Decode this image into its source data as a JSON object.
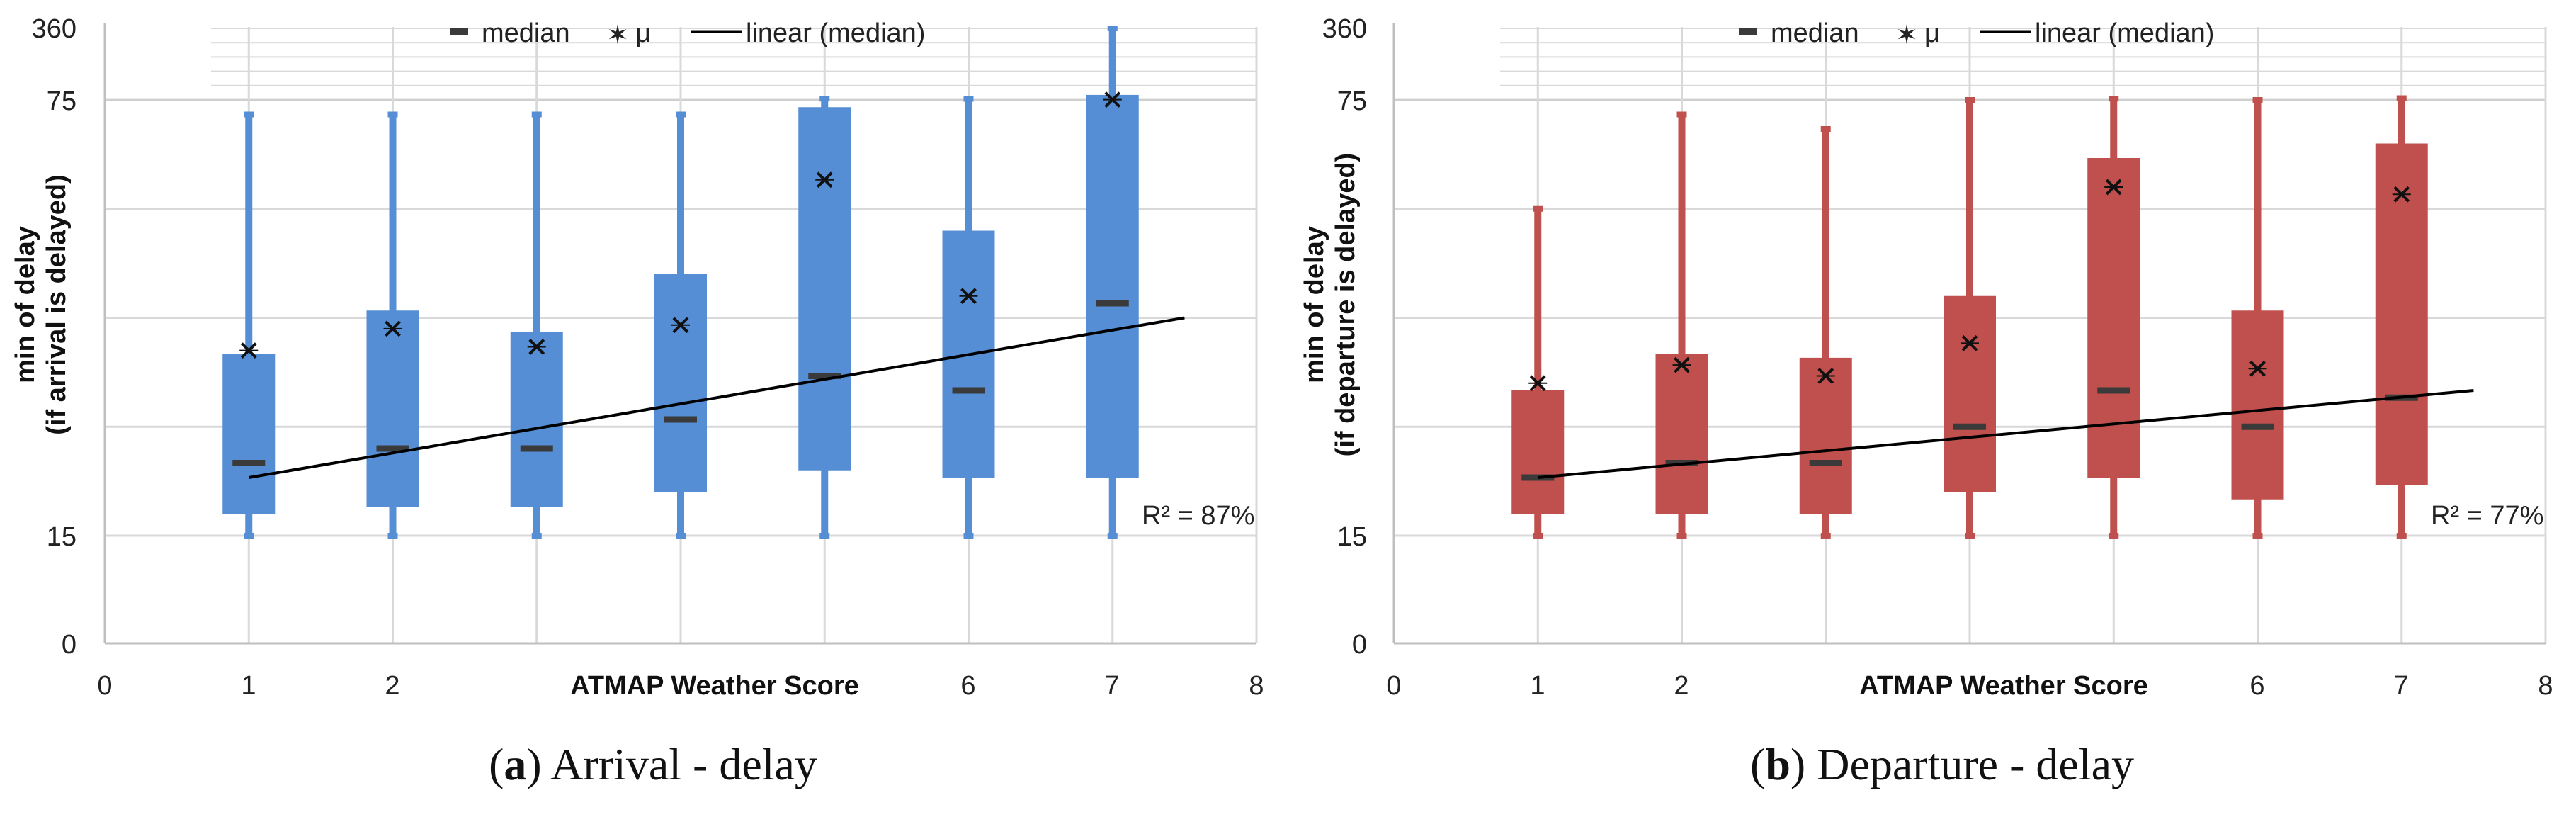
{
  "chart_data": [
    {
      "type": "box",
      "caption_letter": "a",
      "caption_text": "Arrival - delay",
      "color": "#558ED5",
      "xlabel": "ATMAP Weather Score",
      "ylabel_line1": "min of delay",
      "ylabel_line2": "(if arrival is delayed)",
      "xlim": [
        0,
        8
      ],
      "x_ticks": [
        "0",
        "1",
        "2",
        "",
        "",
        "6",
        "7",
        "8"
      ],
      "y_ticks": [
        "0",
        "15",
        "75",
        "360"
      ],
      "y_axis_note": "piecewise scale: 0-15, 15-75 (main), 75-360",
      "legend": [
        "median",
        "μ",
        "linear (median)"
      ],
      "r2_label": "R² = 87%",
      "boxes": [
        {
          "score": 1,
          "whisker_low": 15,
          "q1": 18,
          "median": 25,
          "q3": 40,
          "whisker_high": 73,
          "mean": 40.5
        },
        {
          "score": 2,
          "whisker_low": 15,
          "q1": 19,
          "median": 27,
          "q3": 46,
          "whisker_high": 73,
          "mean": 43.5
        },
        {
          "score": 3,
          "whisker_low": 15,
          "q1": 19,
          "median": 27,
          "q3": 43,
          "whisker_high": 73,
          "mean": 41
        },
        {
          "score": 4,
          "whisker_low": 15,
          "q1": 21,
          "median": 31,
          "q3": 51,
          "whisker_high": 73,
          "mean": 44
        },
        {
          "score": 5,
          "whisker_low": 15,
          "q1": 24,
          "median": 37,
          "q3": 74,
          "whisker_high": 80,
          "mean": 64
        },
        {
          "score": 6,
          "whisker_low": 15,
          "q1": 23,
          "median": 35,
          "q3": 57,
          "whisker_high": 79,
          "mean": 48
        },
        {
          "score": 7,
          "whisker_low": 15,
          "q1": 23,
          "median": 47,
          "q3": 95,
          "whisker_high": 360,
          "mean": 76
        }
      ],
      "trend": {
        "x0": 1,
        "y0": 23,
        "x1": 7.5,
        "y1": 45
      }
    },
    {
      "type": "box",
      "caption_letter": "b",
      "caption_text": "Departure - delay",
      "color": "#C0504D",
      "xlabel": "ATMAP Weather Score",
      "ylabel_line1": "min of delay",
      "ylabel_line2": "(if departure is delayed)",
      "xlim": [
        0,
        8
      ],
      "x_ticks": [
        "0",
        "1",
        "2",
        "",
        "",
        "6",
        "7",
        "8"
      ],
      "y_ticks": [
        "0",
        "15",
        "75",
        "360"
      ],
      "y_axis_note": "piecewise scale: 0-15, 15-75 (main), 75-360",
      "legend": [
        "median",
        "μ",
        "linear (median)"
      ],
      "r2_label": "R² = 77%",
      "boxes": [
        {
          "score": 1,
          "whisker_low": 15,
          "q1": 18,
          "median": 23,
          "q3": 35,
          "whisker_high": 60,
          "mean": 36
        },
        {
          "score": 2,
          "whisker_low": 15,
          "q1": 18,
          "median": 25,
          "q3": 40,
          "whisker_high": 73,
          "mean": 38.5
        },
        {
          "score": 3,
          "whisker_low": 15,
          "q1": 18,
          "median": 25,
          "q3": 39.5,
          "whisker_high": 71,
          "mean": 37
        },
        {
          "score": 4,
          "whisker_low": 15,
          "q1": 21,
          "median": 30,
          "q3": 48,
          "whisker_high": 75,
          "mean": 41.5
        },
        {
          "score": 5,
          "whisker_low": 15,
          "q1": 23,
          "median": 35,
          "q3": 67,
          "whisker_high": 80,
          "mean": 63
        },
        {
          "score": 6,
          "whisker_low": 15,
          "q1": 20,
          "median": 30,
          "q3": 46,
          "whisker_high": 75,
          "mean": 38
        },
        {
          "score": 7,
          "whisker_low": 15,
          "q1": 22,
          "median": 34,
          "q3": 69,
          "whisker_high": 82,
          "mean": 62
        }
      ],
      "trend": {
        "x0": 1,
        "y0": 23,
        "x1": 7.5,
        "y1": 35
      }
    }
  ]
}
